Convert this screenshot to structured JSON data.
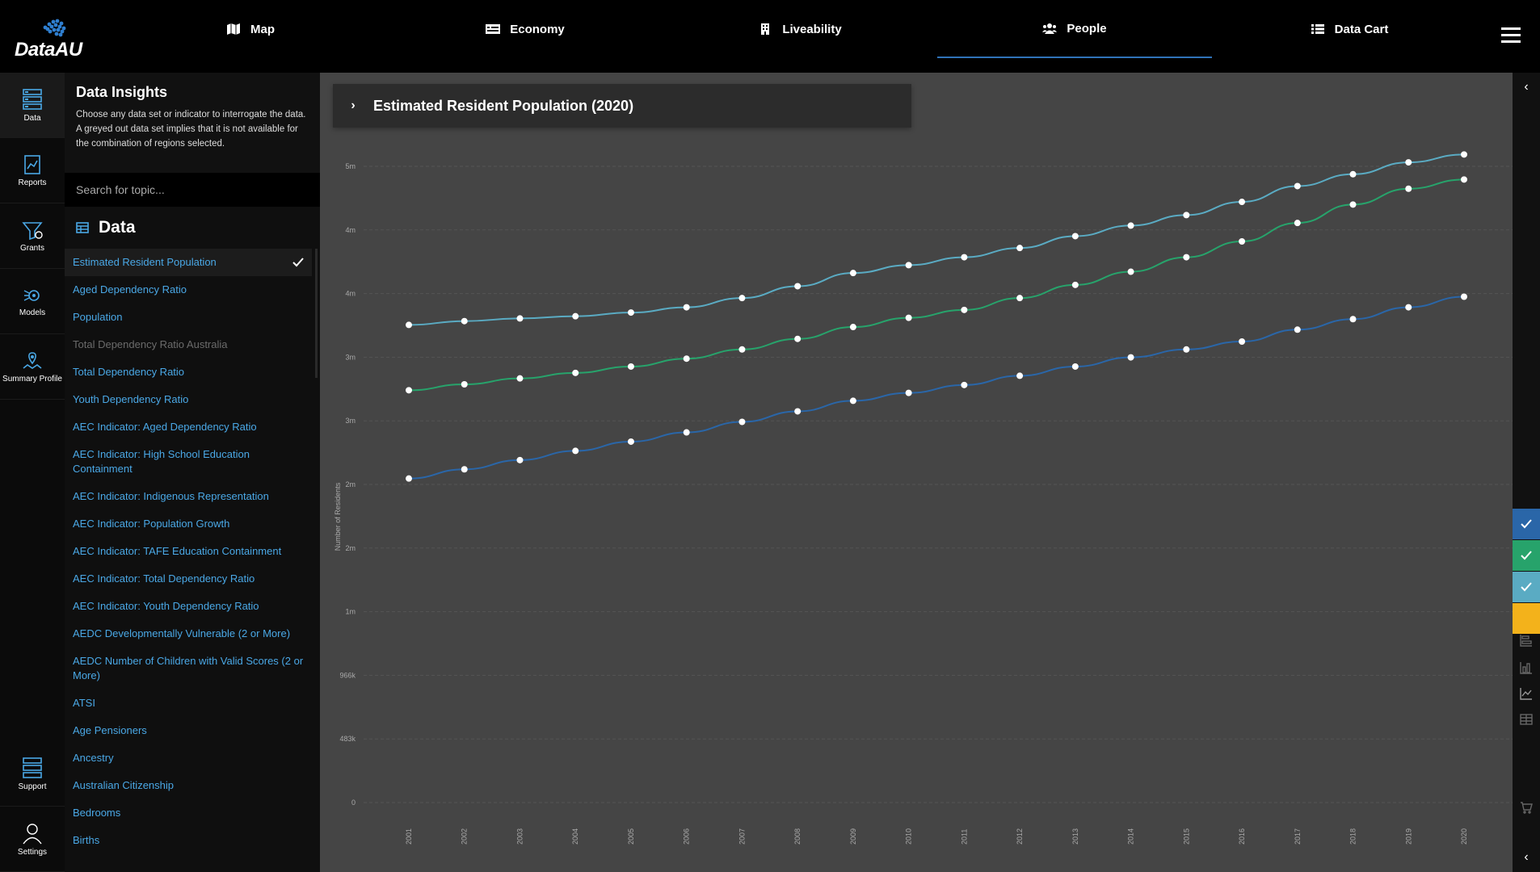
{
  "brand": {
    "name": "DataAU"
  },
  "nav": [
    {
      "label": "Map",
      "icon": "map-icon"
    },
    {
      "label": "Economy",
      "icon": "economy-icon"
    },
    {
      "label": "Liveability",
      "icon": "building-icon"
    },
    {
      "label": "People",
      "icon": "people-icon",
      "active": true
    },
    {
      "label": "Data Cart",
      "icon": "list-icon"
    }
  ],
  "rail": [
    {
      "label": "Data",
      "icon": "data-icon",
      "active": true
    },
    {
      "label": "Reports",
      "icon": "reports-icon"
    },
    {
      "label": "Grants",
      "icon": "grants-icon"
    },
    {
      "label": "Models",
      "icon": "models-icon"
    },
    {
      "label": "Summary Profile",
      "icon": "summary-profile-icon"
    }
  ],
  "rail_bottom": [
    {
      "label": "Support",
      "icon": "support-icon"
    },
    {
      "label": "Settings",
      "icon": "settings-icon"
    }
  ],
  "insights": {
    "title": "Data Insights",
    "description": "Choose any data set or indicator to interrogate the data. A greyed out data set implies that it is not available for the combination of regions selected."
  },
  "search": {
    "placeholder": "Search for topic..."
  },
  "data_section": {
    "title": "Data"
  },
  "datasets": [
    {
      "label": "Estimated Resident Population",
      "selected": true
    },
    {
      "label": "Aged Dependency Ratio"
    },
    {
      "label": "Population"
    },
    {
      "label": "Total Dependency Ratio Australia",
      "disabled": true
    },
    {
      "label": "Total Dependency Ratio"
    },
    {
      "label": "Youth Dependency Ratio"
    },
    {
      "label": "AEC Indicator: Aged Dependency Ratio"
    },
    {
      "label": "AEC Indicator: High School Education Containment"
    },
    {
      "label": "AEC Indicator: Indigenous Representation"
    },
    {
      "label": "AEC Indicator: Population Growth"
    },
    {
      "label": "AEC Indicator: TAFE Education Containment"
    },
    {
      "label": "AEC Indicator: Total Dependency Ratio"
    },
    {
      "label": "AEC Indicator: Youth Dependency Ratio"
    },
    {
      "label": "AEDC Developmentally Vulnerable (2 or More)"
    },
    {
      "label": "AEDC Number of Children with Valid Scores (2 or More)"
    },
    {
      "label": "ATSI"
    },
    {
      "label": "Age Pensioners"
    },
    {
      "label": "Ancestry"
    },
    {
      "label": "Australian Citizenship"
    },
    {
      "label": "Bedrooms"
    },
    {
      "label": "Births"
    }
  ],
  "chart_header": {
    "title": "Estimated Resident Population (2020)"
  },
  "chart_data": {
    "type": "line",
    "ylabel": "Number of Residents",
    "y_tick_labels": [
      "0",
      "483k",
      "966k",
      "1m",
      "2m",
      "2m",
      "3m",
      "3m",
      "4m",
      "4m",
      "5m"
    ],
    "x": [
      "2001",
      "2002",
      "2003",
      "2004",
      "2005",
      "2006",
      "2007",
      "2008",
      "2009",
      "2010",
      "2011",
      "2012",
      "2013",
      "2014",
      "2015",
      "2016",
      "2017",
      "2018",
      "2019",
      "2020"
    ],
    "ylim": [
      0,
      4830000
    ],
    "grid": true,
    "series": [
      {
        "color": "#5aabc3",
        "values": [
          3626000,
          3655000,
          3675000,
          3692000,
          3720000,
          3760000,
          3830000,
          3920000,
          4020000,
          4080000,
          4140000,
          4210000,
          4300000,
          4380000,
          4460000,
          4560000,
          4680000,
          4770000,
          4860000,
          4920000
        ]
      },
      {
        "color": "#27a36b",
        "values": [
          3130000,
          3175000,
          3220000,
          3262000,
          3310000,
          3370000,
          3440000,
          3520000,
          3610000,
          3680000,
          3740000,
          3830000,
          3930000,
          4030000,
          4140000,
          4260000,
          4400000,
          4540000,
          4660000,
          4730000
        ]
      },
      {
        "color": "#2a66a8",
        "values": [
          2460000,
          2530000,
          2600000,
          2670000,
          2740000,
          2810000,
          2890000,
          2970000,
          3050000,
          3110000,
          3170000,
          3240000,
          3310000,
          3380000,
          3440000,
          3500000,
          3590000,
          3670000,
          3760000,
          3840000
        ]
      }
    ]
  },
  "series_toggles": [
    {
      "color": "#2a66a8",
      "checked": true
    },
    {
      "color": "#27a36b",
      "checked": true
    },
    {
      "color": "#5aabc3",
      "checked": true
    },
    {
      "color": "#f3b21b",
      "checked": false
    }
  ],
  "right_tools": [
    "bar-chart-horizontal-icon",
    "bar-chart-icon",
    "line-chart-icon",
    "table-icon",
    "cart-icon"
  ]
}
